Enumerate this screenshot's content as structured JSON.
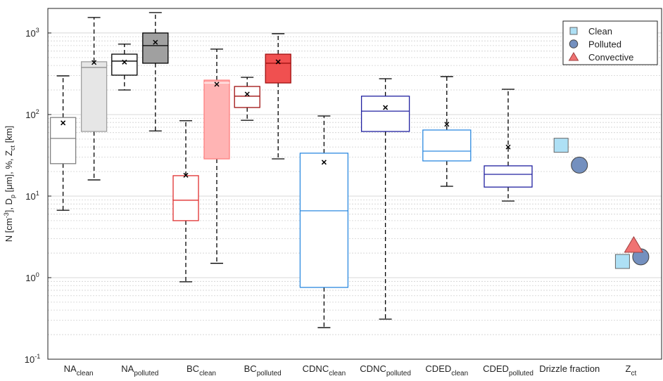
{
  "chart_data": {
    "type": "box",
    "categories": [
      "NA",
      "NA",
      "BC",
      "BC",
      "CDNC",
      "CDNC",
      "CDED",
      "CDED",
      "Drizzle fraction",
      "Z"
    ],
    "category_subscripts": [
      "clean",
      "polluted",
      "clean",
      "polluted",
      "clean",
      "polluted",
      "clean",
      "polluted",
      null,
      "ct"
    ],
    "ylabel": [
      {
        "t": "N [cm"
      },
      {
        "t": "-3",
        "s": "sup"
      },
      {
        "t": "], D"
      },
      {
        "t": "p",
        "s": "sub"
      },
      {
        "t": " [μm], %, Z"
      },
      {
        "t": "ct",
        "s": "sub"
      },
      {
        "t": " [km]"
      }
    ],
    "ylog": true,
    "ylim": [
      0.1,
      2000
    ],
    "yticks": [
      {
        "value": 0.1,
        "label": "10",
        "exp": "-1"
      },
      {
        "value": 1,
        "label": "10",
        "exp": "0"
      },
      {
        "value": 10,
        "label": "10",
        "exp": "1"
      },
      {
        "value": 100,
        "label": "10",
        "exp": "2"
      },
      {
        "value": 1000,
        "label": "10",
        "exp": "3"
      }
    ],
    "minor_yticks": [
      0.2,
      0.3,
      0.4,
      0.5,
      0.6,
      0.7,
      0.8,
      0.9,
      2,
      3,
      4,
      5,
      6,
      7,
      8,
      9,
      20,
      30,
      40,
      50,
      60,
      70,
      80,
      90,
      200,
      300,
      400,
      500,
      600,
      700,
      800,
      900,
      2000
    ],
    "grid": true,
    "boxes": [
      {
        "category": 0,
        "filled": false,
        "color": "#808080",
        "median_color": "#808080",
        "whislo": 6.7,
        "q1": 25,
        "med": 51,
        "q3": 92,
        "whishi": 298,
        "mean": 79
      },
      {
        "category": 0,
        "filled": true,
        "color": "#a0a0a0",
        "fill": "#e6e6e6",
        "median_color": "#909090",
        "whislo": 15.8,
        "q1": 62,
        "med": 378,
        "q3": 444,
        "whishi": 1550,
        "mean": 435
      },
      {
        "category": 1,
        "filled": false,
        "color": "#000000",
        "median_color": "#000000",
        "whislo": 200,
        "q1": 304,
        "med": 452,
        "q3": 550,
        "whishi": 730,
        "mean": 440
      },
      {
        "category": 1,
        "filled": true,
        "color": "#000000",
        "fill": "#a0a0a0",
        "median_color": "#000000",
        "whislo": 63,
        "q1": 426,
        "med": 700,
        "q3": 1000,
        "whishi": 1780,
        "mean": 770
      },
      {
        "category": 2,
        "filled": false,
        "color": "#e03030",
        "median_color": "#e03030",
        "whislo": 0.89,
        "q1": 5.0,
        "med": 8.9,
        "q3": 17.8,
        "whishi": 84,
        "mean": 18
      },
      {
        "category": 2,
        "filled": true,
        "color": "#ff8080",
        "fill": "#ffb4b4",
        "median_color": "#ffffff",
        "whislo": 1.5,
        "q1": 28.6,
        "med": 244,
        "q3": 264,
        "whishi": 634,
        "mean": 235
      },
      {
        "category": 3,
        "filled": false,
        "color": "#a01010",
        "median_color": "#a01010",
        "whislo": 85,
        "q1": 122,
        "med": 168,
        "q3": 221,
        "whishi": 286,
        "mean": 178
      },
      {
        "category": 3,
        "filled": true,
        "color": "#a01010",
        "fill": "#f05050",
        "median_color": "#a01010",
        "whislo": 28.6,
        "q1": 244,
        "med": 426,
        "q3": 550,
        "whishi": 980,
        "mean": 443
      },
      {
        "category": 4,
        "filled": false,
        "color": "#2d8ae0",
        "median_color": "#2d8ae0",
        "whislo": 0.244,
        "q1": 0.76,
        "med": 6.6,
        "q3": 33.6,
        "whishi": 96,
        "mean": 26
      },
      {
        "category": 5,
        "filled": false,
        "color": "#2020a0",
        "median_color": "#2020a0",
        "whislo": 0.31,
        "q1": 62,
        "med": 110,
        "q3": 168,
        "whishi": 275,
        "mean": 122
      },
      {
        "category": 6,
        "filled": false,
        "color": "#2d8ae0",
        "median_color": "#2d8ae0",
        "whislo": 13.2,
        "q1": 27,
        "med": 35.6,
        "q3": 64.6,
        "whishi": 292,
        "mean": 76
      },
      {
        "category": 7,
        "filled": false,
        "color": "#2020a0",
        "median_color": "#2020a0",
        "whislo": 8.7,
        "q1": 12.9,
        "med": 18.5,
        "q3": 23.5,
        "whishi": 204,
        "mean": 40
      }
    ],
    "series": [
      {
        "name": "Clean",
        "marker": "square",
        "color": "#aee0f5",
        "values": [
          null,
          null,
          null,
          null,
          null,
          null,
          null,
          null,
          42,
          1.58
        ]
      },
      {
        "name": "Polluted",
        "marker": "circle",
        "color": "#7490bf",
        "values": [
          null,
          null,
          null,
          null,
          null,
          null,
          null,
          null,
          24,
          1.8
        ]
      },
      {
        "name": "Convective",
        "marker": "triangle",
        "color": "#f07272",
        "values": [
          null,
          null,
          null,
          null,
          null,
          null,
          null,
          null,
          null,
          2.5
        ]
      }
    ],
    "legend": "upper right"
  }
}
